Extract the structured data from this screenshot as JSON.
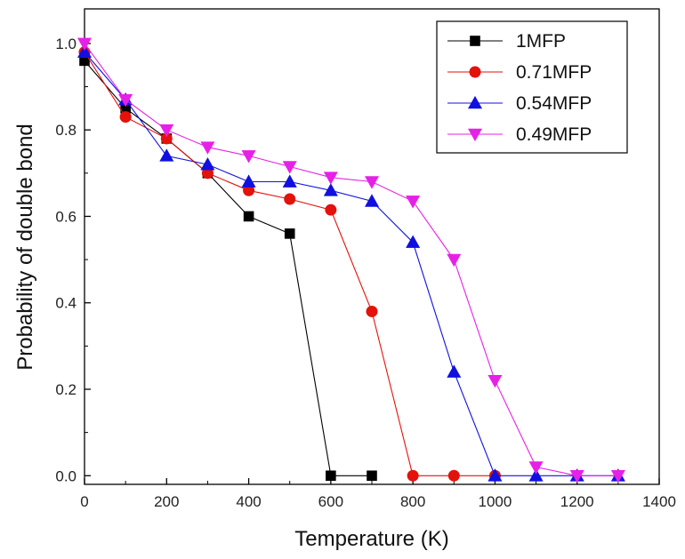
{
  "chart_data": {
    "type": "line",
    "title": "",
    "xlabel": "Temperature (K)",
    "ylabel": "Probability of double bond",
    "xlim": [
      0,
      1400
    ],
    "ylim": [
      -0.02,
      1.08
    ],
    "xticks": [
      0,
      200,
      400,
      600,
      800,
      1000,
      1200,
      1400
    ],
    "xtick_labels": [
      "0",
      "200",
      "400",
      "600",
      "800",
      "1000",
      "1200",
      "1400"
    ],
    "yticks": [
      0.0,
      0.2,
      0.4,
      0.6,
      0.8,
      1.0
    ],
    "ytick_labels": [
      "0.0",
      "0.2",
      "0.4",
      "0.6",
      "0.8",
      "1.0"
    ],
    "grid": false,
    "legend_position": "top-right",
    "x": [
      0,
      100,
      200,
      300,
      400,
      500,
      600,
      700,
      800,
      900,
      1000,
      1100,
      1200,
      1300
    ],
    "series": [
      {
        "name": "1MFP",
        "color": "#000000",
        "marker": "square",
        "x": [
          0,
          100,
          200,
          300,
          400,
          500,
          600,
          700
        ],
        "values": [
          0.96,
          0.85,
          0.78,
          0.7,
          0.6,
          0.56,
          0.0,
          0.0
        ]
      },
      {
        "name": "0.71MFP",
        "color": "#e3120b",
        "marker": "circle",
        "x": [
          0,
          100,
          200,
          300,
          400,
          500,
          600,
          700,
          800,
          900,
          1000
        ],
        "values": [
          0.98,
          0.83,
          0.78,
          0.7,
          0.66,
          0.64,
          0.615,
          0.38,
          0.0,
          0.0,
          0.0
        ]
      },
      {
        "name": "0.54MFP",
        "color": "#1010e0",
        "marker": "triangle-up",
        "x": [
          0,
          100,
          200,
          300,
          400,
          500,
          600,
          700,
          800,
          900,
          1000,
          1100,
          1200,
          1300
        ],
        "values": [
          0.98,
          0.87,
          0.74,
          0.72,
          0.68,
          0.68,
          0.66,
          0.635,
          0.54,
          0.24,
          0.0,
          0.0,
          0.0,
          0.0
        ]
      },
      {
        "name": "0.49MFP",
        "color": "#e620e6",
        "marker": "triangle-down",
        "x": [
          0,
          100,
          200,
          300,
          400,
          500,
          600,
          700,
          800,
          900,
          1000,
          1100,
          1200,
          1300
        ],
        "values": [
          1.0,
          0.87,
          0.8,
          0.76,
          0.74,
          0.715,
          0.69,
          0.68,
          0.635,
          0.5,
          0.22,
          0.02,
          0.0,
          0.0
        ]
      }
    ]
  }
}
